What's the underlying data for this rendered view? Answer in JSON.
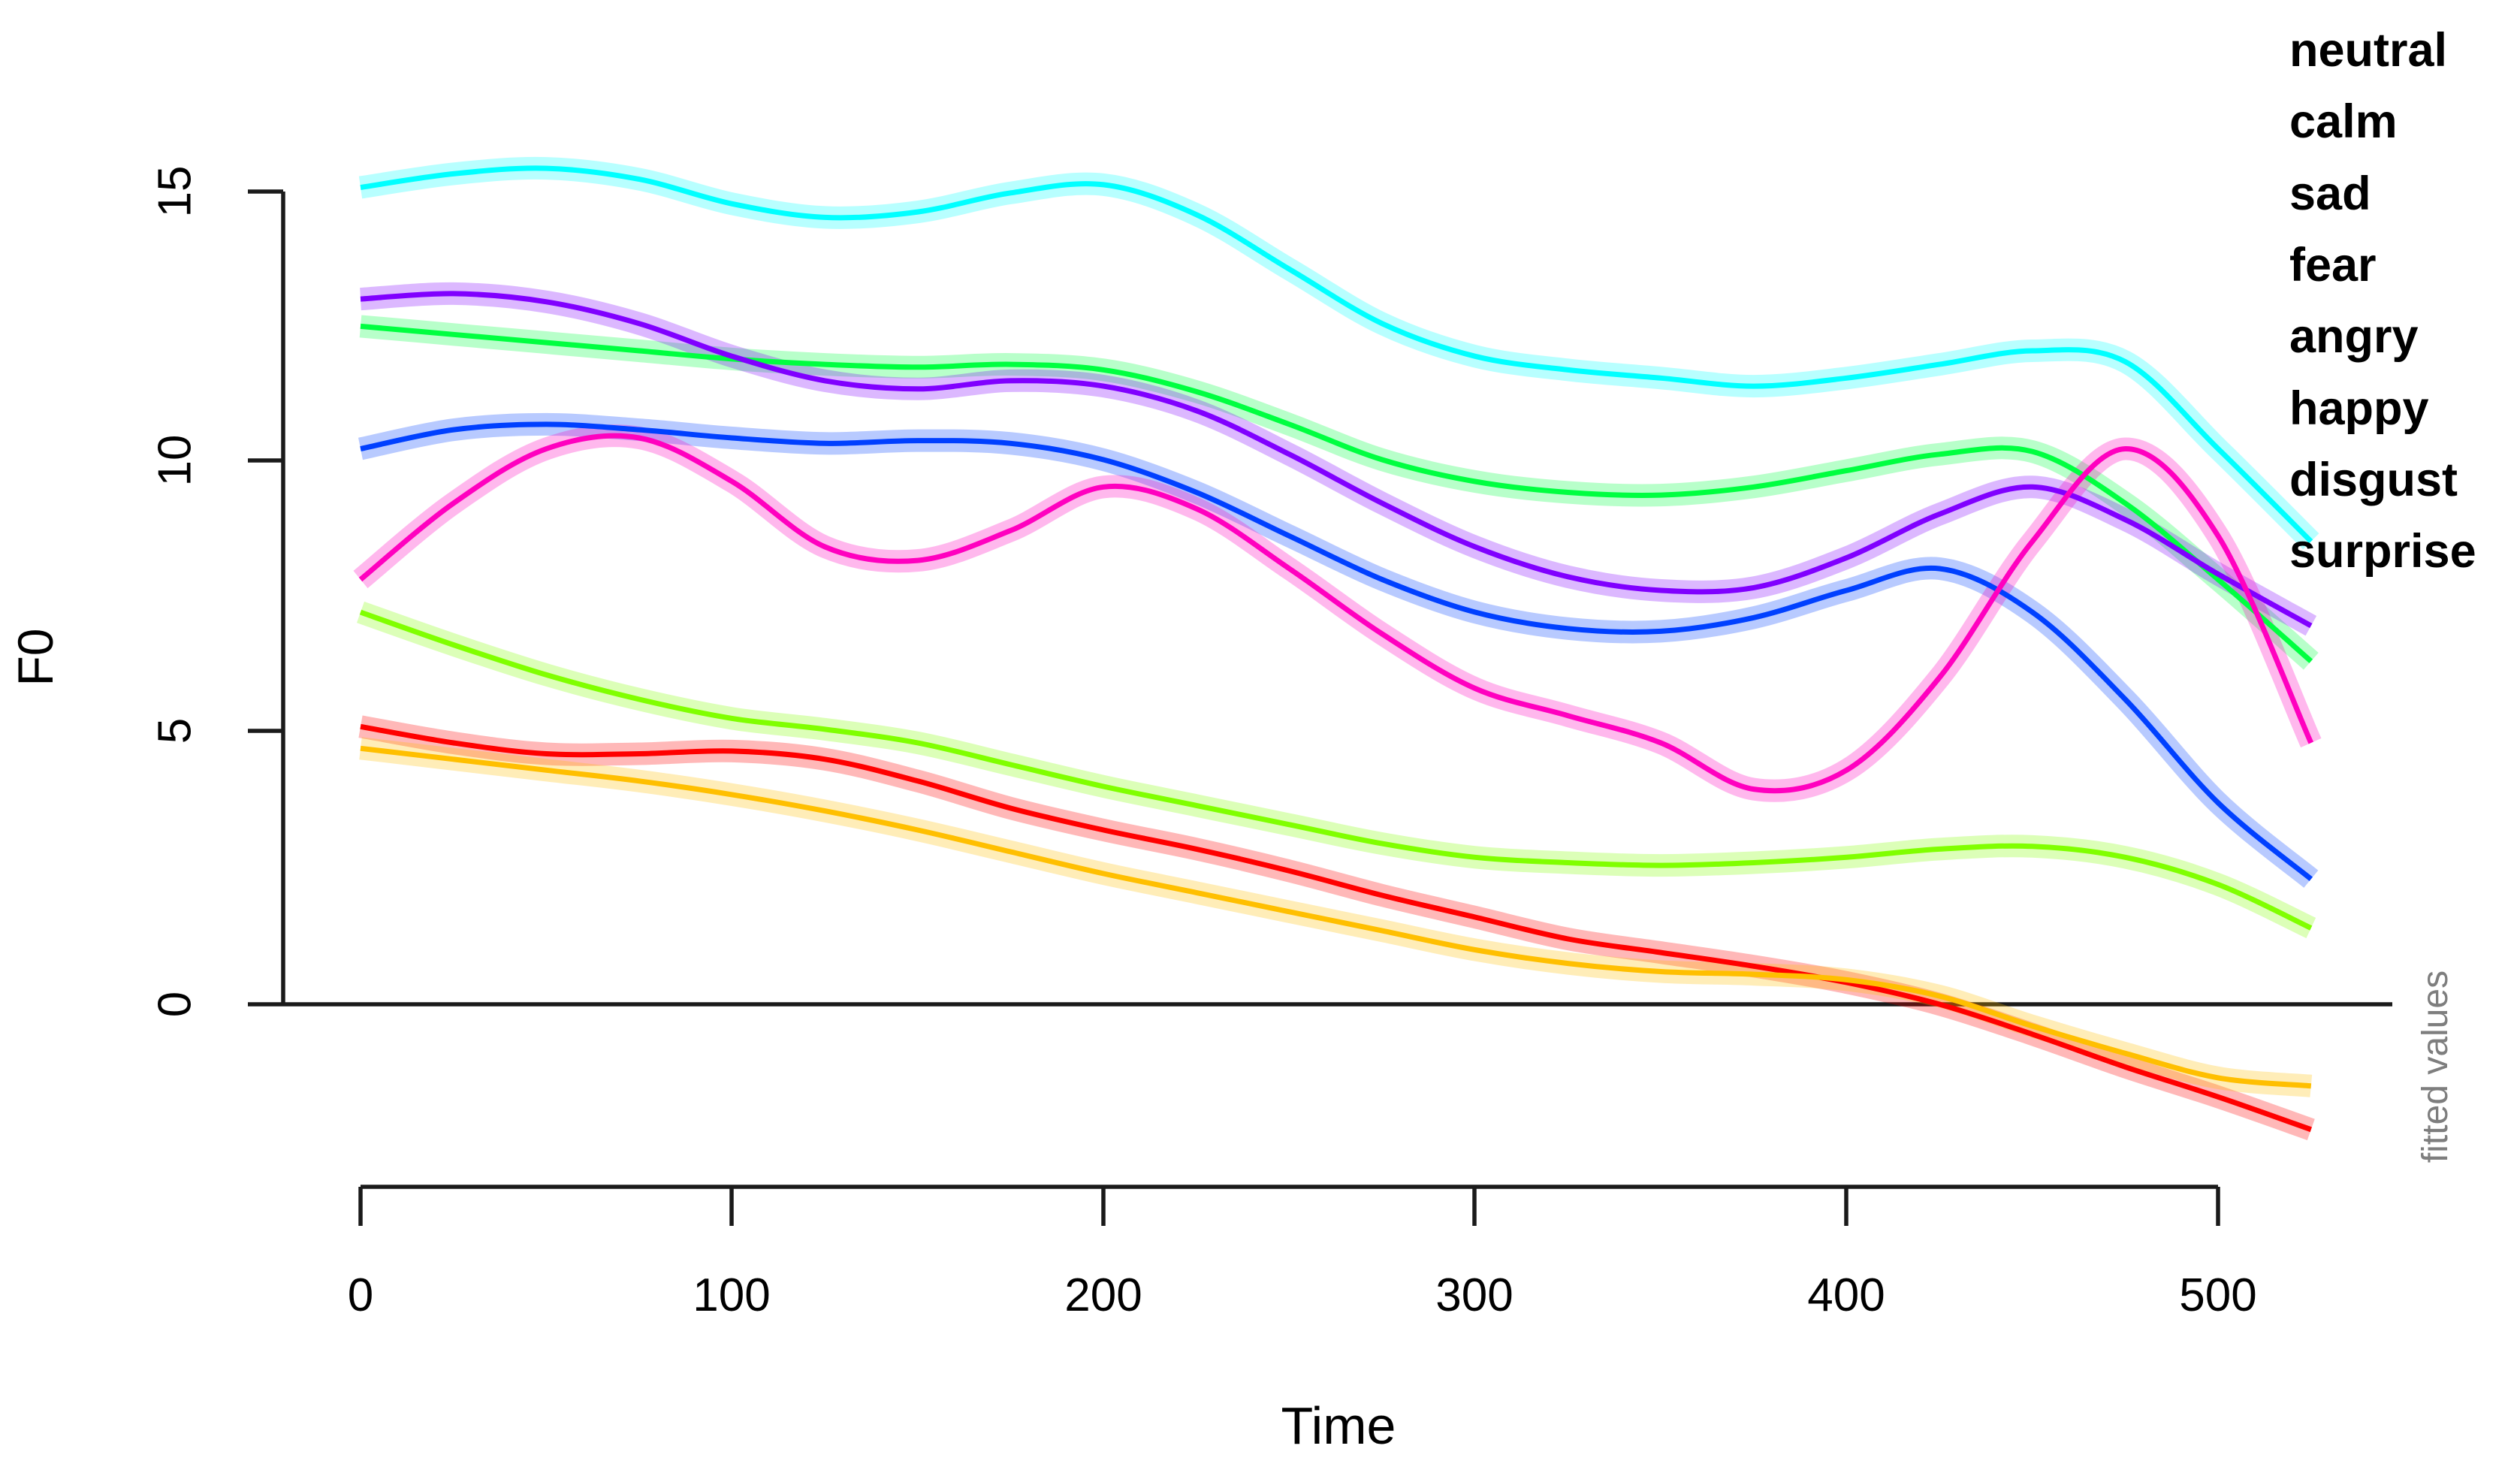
{
  "chart_data": {
    "type": "line",
    "title": "",
    "xlabel": "Time",
    "ylabel": "F0",
    "right_axis_label": "fitted values",
    "x_tick_labels": [
      "0",
      "100",
      "200",
      "300",
      "400",
      "500"
    ],
    "x_tick_values": [
      0,
      100,
      200,
      300,
      400,
      500
    ],
    "y_tick_labels": [
      "0",
      "5",
      "10",
      "15"
    ],
    "y_tick_values": [
      0,
      5,
      10,
      15
    ],
    "xlim": [
      0,
      525
    ],
    "ylim": [
      -2.5,
      15.5
    ],
    "grid": false,
    "zero_line": true,
    "confidence_bands": true,
    "legend_position": "top-right",
    "x": [
      0,
      25,
      50,
      75,
      100,
      125,
      150,
      175,
      200,
      225,
      250,
      275,
      300,
      325,
      350,
      375,
      400,
      425,
      450,
      475,
      500,
      525
    ],
    "series": [
      {
        "name": "neutral",
        "color": "#FF0000",
        "values": [
          5.1,
          4.8,
          4.6,
          4.6,
          4.65,
          4.5,
          4.1,
          3.6,
          3.2,
          2.85,
          2.45,
          2.0,
          1.6,
          1.2,
          0.95,
          0.7,
          0.4,
          0.0,
          -0.55,
          -1.15,
          -1.7,
          -2.3
        ]
      },
      {
        "name": "calm",
        "color": "#FFBF00",
        "values": [
          4.7,
          4.5,
          4.3,
          4.1,
          3.85,
          3.55,
          3.2,
          2.8,
          2.4,
          2.05,
          1.7,
          1.35,
          1.0,
          0.75,
          0.6,
          0.55,
          0.45,
          0.15,
          -0.4,
          -0.9,
          -1.35,
          -1.5
        ]
      },
      {
        "name": "sad",
        "color": "#80FF00",
        "values": [
          7.2,
          6.6,
          6.05,
          5.6,
          5.25,
          5.05,
          4.8,
          4.4,
          4.0,
          3.65,
          3.3,
          2.95,
          2.7,
          2.6,
          2.55,
          2.6,
          2.7,
          2.85,
          2.9,
          2.7,
          2.2,
          1.4
        ]
      },
      {
        "name": "fear",
        "color": "#00FF40",
        "values": [
          12.45,
          12.3,
          12.15,
          12.0,
          11.85,
          11.75,
          11.7,
          11.75,
          11.65,
          11.25,
          10.65,
          10.0,
          9.6,
          9.4,
          9.35,
          9.5,
          9.8,
          10.1,
          10.15,
          9.2,
          7.8,
          6.3
        ]
      },
      {
        "name": "angry",
        "color": "#00FFFF",
        "values": [
          15.0,
          15.25,
          15.35,
          15.15,
          14.7,
          14.45,
          14.55,
          14.9,
          15.05,
          14.5,
          13.5,
          12.5,
          11.9,
          11.65,
          11.5,
          11.35,
          11.5,
          11.75,
          12.0,
          11.8,
          10.2,
          8.5
        ]
      },
      {
        "name": "happy",
        "color": "#0040FF",
        "values": [
          10.2,
          10.55,
          10.65,
          10.55,
          10.4,
          10.3,
          10.35,
          10.3,
          10.0,
          9.4,
          8.6,
          7.8,
          7.2,
          6.9,
          6.85,
          7.1,
          7.6,
          8.0,
          7.2,
          5.6,
          3.7,
          2.3
        ]
      },
      {
        "name": "disgust",
        "color": "#8000FF",
        "values": [
          12.95,
          13.05,
          12.9,
          12.5,
          11.9,
          11.45,
          11.3,
          11.45,
          11.35,
          10.9,
          10.1,
          9.2,
          8.4,
          7.85,
          7.6,
          7.65,
          8.2,
          9.0,
          9.5,
          8.9,
          7.9,
          6.95
        ]
      },
      {
        "name": "surprise",
        "color": "#FF00BF",
        "values": [
          7.8,
          9.2,
          10.2,
          10.4,
          9.6,
          8.4,
          8.15,
          8.7,
          9.5,
          9.1,
          8.0,
          6.8,
          5.8,
          5.3,
          4.8,
          3.95,
          4.3,
          6.0,
          8.5,
          10.2,
          8.6,
          4.8
        ]
      }
    ]
  }
}
